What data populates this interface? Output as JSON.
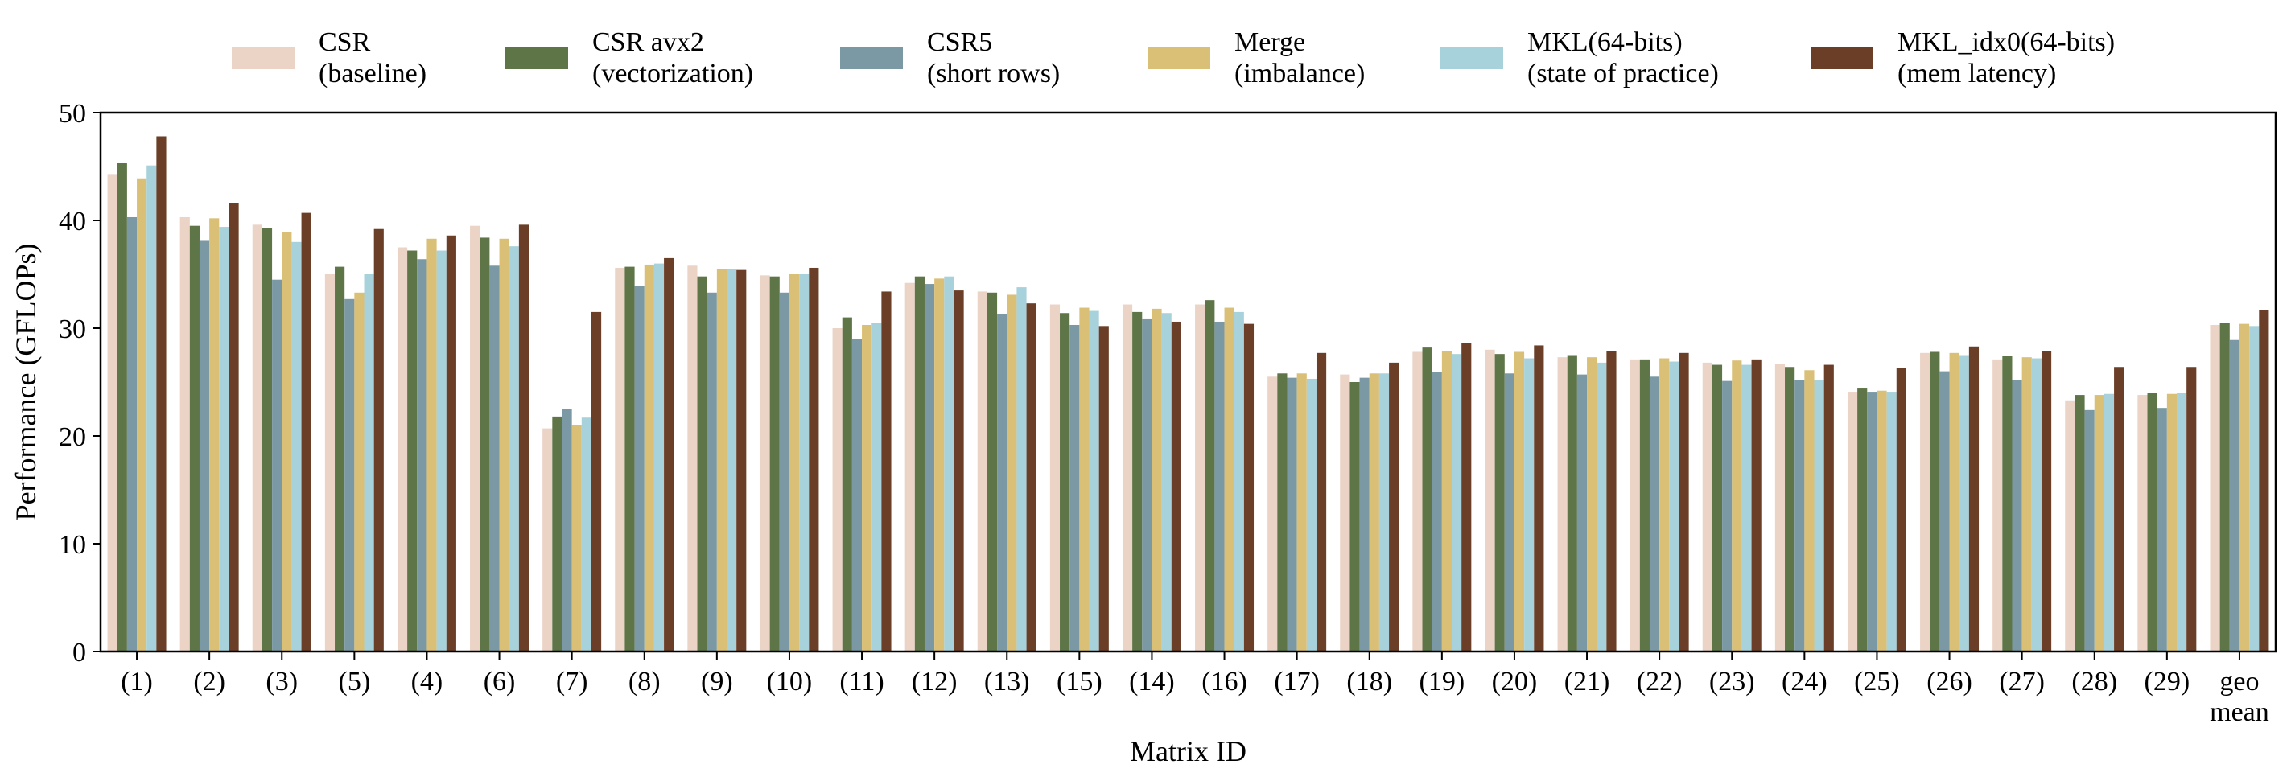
{
  "chart_data": {
    "type": "bar",
    "title": "",
    "xlabel": "Matrix ID",
    "ylabel": "Performance (GFLOPs)",
    "ylim": [
      0,
      50
    ],
    "yticks": [
      0,
      10,
      20,
      30,
      40,
      50
    ],
    "grid": false,
    "legend_position": "top-center",
    "categories": [
      "(1)",
      "(2)",
      "(3)",
      "(5)",
      "(4)",
      "(6)",
      "(7)",
      "(8)",
      "(9)",
      "(10)",
      "(11)",
      "(12)",
      "(13)",
      "(15)",
      "(14)",
      "(16)",
      "(17)",
      "(18)",
      "(19)",
      "(20)",
      "(21)",
      "(22)",
      "(23)",
      "(24)",
      "(25)",
      "(26)",
      "(27)",
      "(28)",
      "(29)",
      "geo\nmean"
    ],
    "series": [
      {
        "name": "CSR",
        "sublabel": "(baseline)",
        "color": "#EBD3C6",
        "values": [
          44.3,
          40.3,
          39.6,
          35.0,
          37.5,
          39.5,
          20.7,
          35.6,
          35.8,
          34.9,
          30.0,
          34.2,
          33.4,
          32.2,
          32.2,
          32.2,
          25.5,
          25.7,
          27.8,
          28.0,
          27.3,
          27.1,
          26.8,
          26.7,
          24.1,
          27.7,
          27.1,
          23.3,
          23.8,
          30.3
        ]
      },
      {
        "name": "CSR avx2",
        "sublabel": "(vectorization)",
        "color": "#5E7548",
        "values": [
          45.3,
          39.5,
          39.3,
          35.7,
          37.2,
          38.4,
          21.8,
          35.7,
          34.8,
          34.8,
          31.0,
          34.8,
          33.3,
          31.4,
          31.5,
          32.6,
          25.8,
          25.0,
          28.2,
          27.6,
          27.5,
          27.1,
          26.6,
          26.4,
          24.4,
          27.8,
          27.4,
          23.8,
          24.0,
          30.5
        ]
      },
      {
        "name": "CSR5",
        "sublabel": "(short rows)",
        "color": "#7B99A4",
        "values": [
          40.3,
          38.1,
          34.5,
          32.7,
          36.4,
          35.8,
          22.5,
          33.9,
          33.3,
          33.3,
          29.0,
          34.1,
          31.3,
          30.3,
          30.9,
          30.6,
          25.4,
          25.4,
          25.9,
          25.8,
          25.7,
          25.5,
          25.1,
          25.2,
          24.1,
          26.0,
          25.2,
          22.4,
          22.6,
          28.9
        ]
      },
      {
        "name": "Merge",
        "sublabel": "(imbalance)",
        "color": "#DABF76",
        "values": [
          43.9,
          40.2,
          38.9,
          33.3,
          38.3,
          38.3,
          21.0,
          35.9,
          35.5,
          35.0,
          30.3,
          34.6,
          33.1,
          31.9,
          31.8,
          31.9,
          25.8,
          25.8,
          27.9,
          27.8,
          27.3,
          27.2,
          27.0,
          26.1,
          24.2,
          27.7,
          27.3,
          23.8,
          23.9,
          30.4
        ]
      },
      {
        "name": "MKL(64-bits)",
        "sublabel": "(state of practice)",
        "color": "#A8D2DB",
        "values": [
          45.1,
          39.4,
          38.0,
          35.0,
          37.2,
          37.6,
          21.7,
          36.0,
          35.5,
          35.0,
          30.5,
          34.8,
          33.8,
          31.6,
          31.4,
          31.5,
          25.3,
          25.8,
          27.6,
          27.2,
          26.8,
          26.9,
          26.6,
          25.2,
          24.1,
          27.5,
          27.2,
          23.9,
          24.0,
          30.2
        ]
      },
      {
        "name": "MKL_idx0(64-bits)",
        "sublabel": "(mem latency)",
        "color": "#6B3F27",
        "values": [
          47.8,
          41.6,
          40.7,
          39.2,
          38.6,
          39.6,
          31.5,
          36.5,
          35.4,
          35.6,
          33.4,
          33.5,
          32.3,
          30.2,
          30.6,
          30.4,
          27.7,
          26.8,
          28.6,
          28.4,
          27.9,
          27.7,
          27.1,
          26.6,
          26.3,
          28.3,
          27.9,
          26.4,
          26.4,
          31.7
        ]
      }
    ]
  }
}
